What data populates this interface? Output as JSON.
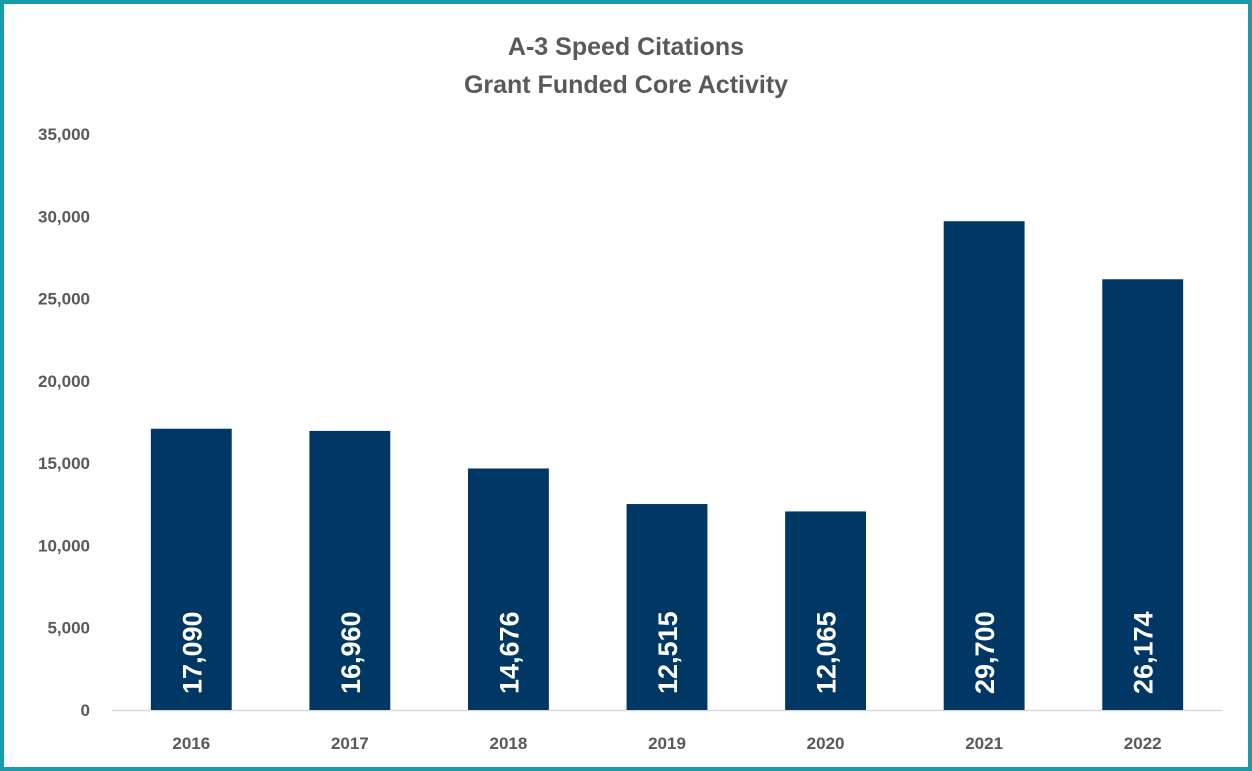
{
  "chart_data": {
    "type": "bar",
    "title": "A-3 Speed Citations",
    "subtitle": "Grant Funded Core Activity",
    "xlabel": "",
    "ylabel": "",
    "categories": [
      "2016",
      "2017",
      "2018",
      "2019",
      "2020",
      "2021",
      "2022"
    ],
    "values": [
      17090,
      16960,
      14676,
      12515,
      12065,
      29700,
      26174
    ],
    "data_labels": [
      "17,090",
      "16,960",
      "14,676",
      "12,515",
      "12,065",
      "29,700",
      "26,174"
    ],
    "ylim": [
      0,
      35000
    ],
    "yticks": [
      0,
      5000,
      10000,
      15000,
      20000,
      25000,
      30000,
      35000
    ],
    "ytick_labels": [
      "0",
      "5,000",
      "10,000",
      "15,000",
      "20,000",
      "25,000",
      "30,000",
      "35,000"
    ],
    "grid": false,
    "legend": "none",
    "bar_color": "#003764",
    "frame_color": "#1a9ba8"
  }
}
